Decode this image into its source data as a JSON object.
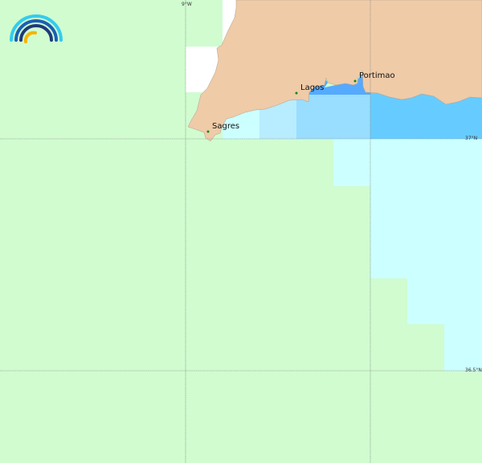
{
  "map": {
    "colors": {
      "sea_default": "#d0fcd0",
      "land": "#efcba8",
      "shallow_1": "#ccffff",
      "shallow_2": "#b8ecff",
      "shallow_3": "#99ddff",
      "shallow_4": "#66ccff",
      "bay": "#55aaff",
      "no_data": "#ffffff",
      "grid": "#888888",
      "city_marker": "#118811"
    },
    "grid_labels": {
      "lon_9w": "9°W",
      "lat_37n": "37°N",
      "lat_36_5n": "36.5°N"
    },
    "places": [
      {
        "name": "Sagres"
      },
      {
        "name": "Lagos"
      },
      {
        "name": "Portimao"
      }
    ],
    "logo": {
      "icon": "rainbow-arc-logo-icon"
    }
  }
}
